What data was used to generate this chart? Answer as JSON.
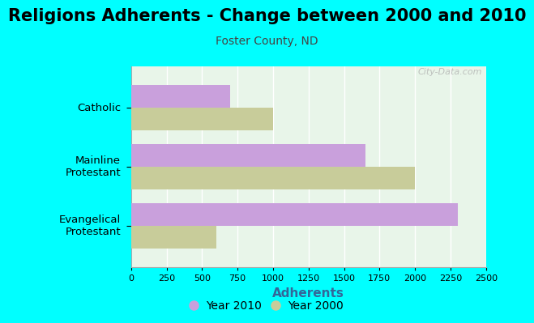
{
  "title": "Religions Adherents - Change between 2000 and 2010",
  "subtitle": "Foster County, ND",
  "xlabel": "Adherents",
  "categories": [
    "Catholic",
    "Mainline\nProtestant",
    "Evangelical\nProtestant"
  ],
  "values_2010": [
    700,
    1650,
    2300
  ],
  "values_2000": [
    1000,
    2000,
    600
  ],
  "color_2010": "#c9a0dc",
  "color_2000": "#c8cc9a",
  "xlim": [
    0,
    2500
  ],
  "xticks": [
    0,
    250,
    500,
    750,
    1000,
    1250,
    1500,
    1750,
    2000,
    2250,
    2500
  ],
  "background_outer": "#00ffff",
  "background_plot": "#e8f5e9",
  "title_fontsize": 15,
  "subtitle_fontsize": 10,
  "xlabel_fontsize": 11,
  "legend_fontsize": 10,
  "watermark": "City-Data.com",
  "bar_height": 0.38
}
